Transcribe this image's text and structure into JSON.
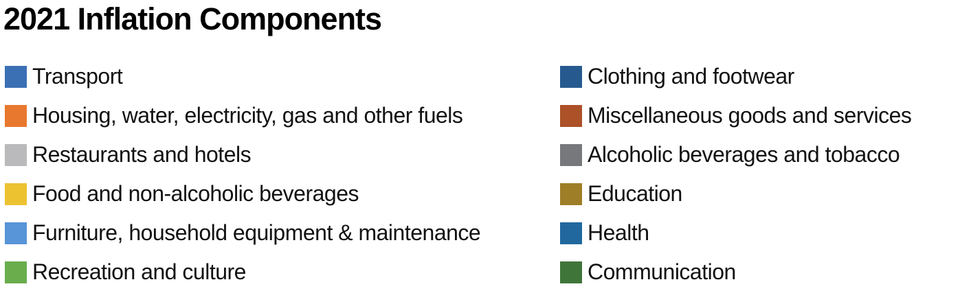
{
  "chart_data": {
    "type": "legend",
    "title": "2021 Inflation Components",
    "subtitle": "",
    "legend_position": "two columns below title",
    "values_visible": false,
    "columns": {
      "left": [
        {
          "label": "Transport",
          "color": "#3B70B5"
        },
        {
          "label": "Housing, water, electricity, gas and other fuels",
          "color": "#E8782D"
        },
        {
          "label": "Restaurants and hotels",
          "color": "#BABABC"
        },
        {
          "label": "Food and non-alcoholic beverages",
          "color": "#ECC231"
        },
        {
          "label": "Furniture, household equipment & maintenance",
          "color": "#5795D8"
        },
        {
          "label": "Recreation and culture",
          "color": "#69AD4C"
        }
      ],
      "right": [
        {
          "label": "Clothing and footwear",
          "color": "#265A8F"
        },
        {
          "label": "Miscellaneous goods and services",
          "color": "#AC5128"
        },
        {
          "label": "Alcoholic beverages and tobacco",
          "color": "#77787C"
        },
        {
          "label": "Education",
          "color": "#9E7E27"
        },
        {
          "label": "Health",
          "color": "#21689E"
        },
        {
          "label": "Communication",
          "color": "#40753A"
        }
      ]
    }
  }
}
